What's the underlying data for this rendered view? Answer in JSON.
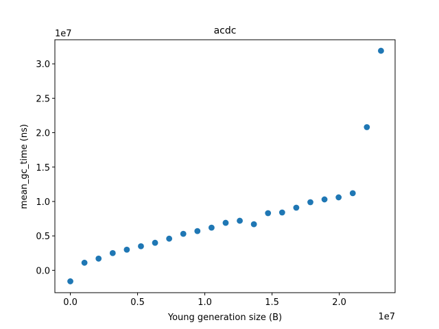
{
  "chart_data": {
    "type": "scatter",
    "title": "acdc",
    "xlabel": "Young generation size (B)",
    "ylabel": "mean_gc_time (ns)",
    "x_offset_label": "1e7",
    "y_offset_label": "1e7",
    "xlim": [
      -0.115,
      2.415
    ],
    "ylim": [
      -0.325,
      3.35
    ],
    "xticks": [
      0.0,
      0.5,
      1.0,
      1.5,
      2.0
    ],
    "xtick_labels": [
      "0.0",
      "0.5",
      "1.0",
      "1.5",
      "2.0"
    ],
    "yticks": [
      0.0,
      0.5,
      1.0,
      1.5,
      2.0,
      2.5,
      3.0
    ],
    "ytick_labels": [
      "0.0",
      "0.5",
      "1.0",
      "1.5",
      "2.0",
      "2.5",
      "3.0"
    ],
    "grid": false,
    "marker_color": "#1f77b4",
    "series": [
      {
        "x": [
          0.0,
          0.105,
          0.21,
          0.315,
          0.42,
          0.525,
          0.63,
          0.735,
          0.84,
          0.945,
          1.05,
          1.155,
          1.26,
          1.365,
          1.47,
          1.575,
          1.68,
          1.785,
          1.89,
          1.995,
          2.1,
          2.205,
          2.31
        ],
        "y": [
          -0.16,
          0.11,
          0.17,
          0.25,
          0.3,
          0.35,
          0.4,
          0.46,
          0.53,
          0.57,
          0.62,
          0.69,
          0.72,
          0.67,
          0.83,
          0.84,
          0.91,
          0.99,
          1.03,
          1.06,
          1.12,
          2.08,
          3.19
        ]
      }
    ]
  }
}
